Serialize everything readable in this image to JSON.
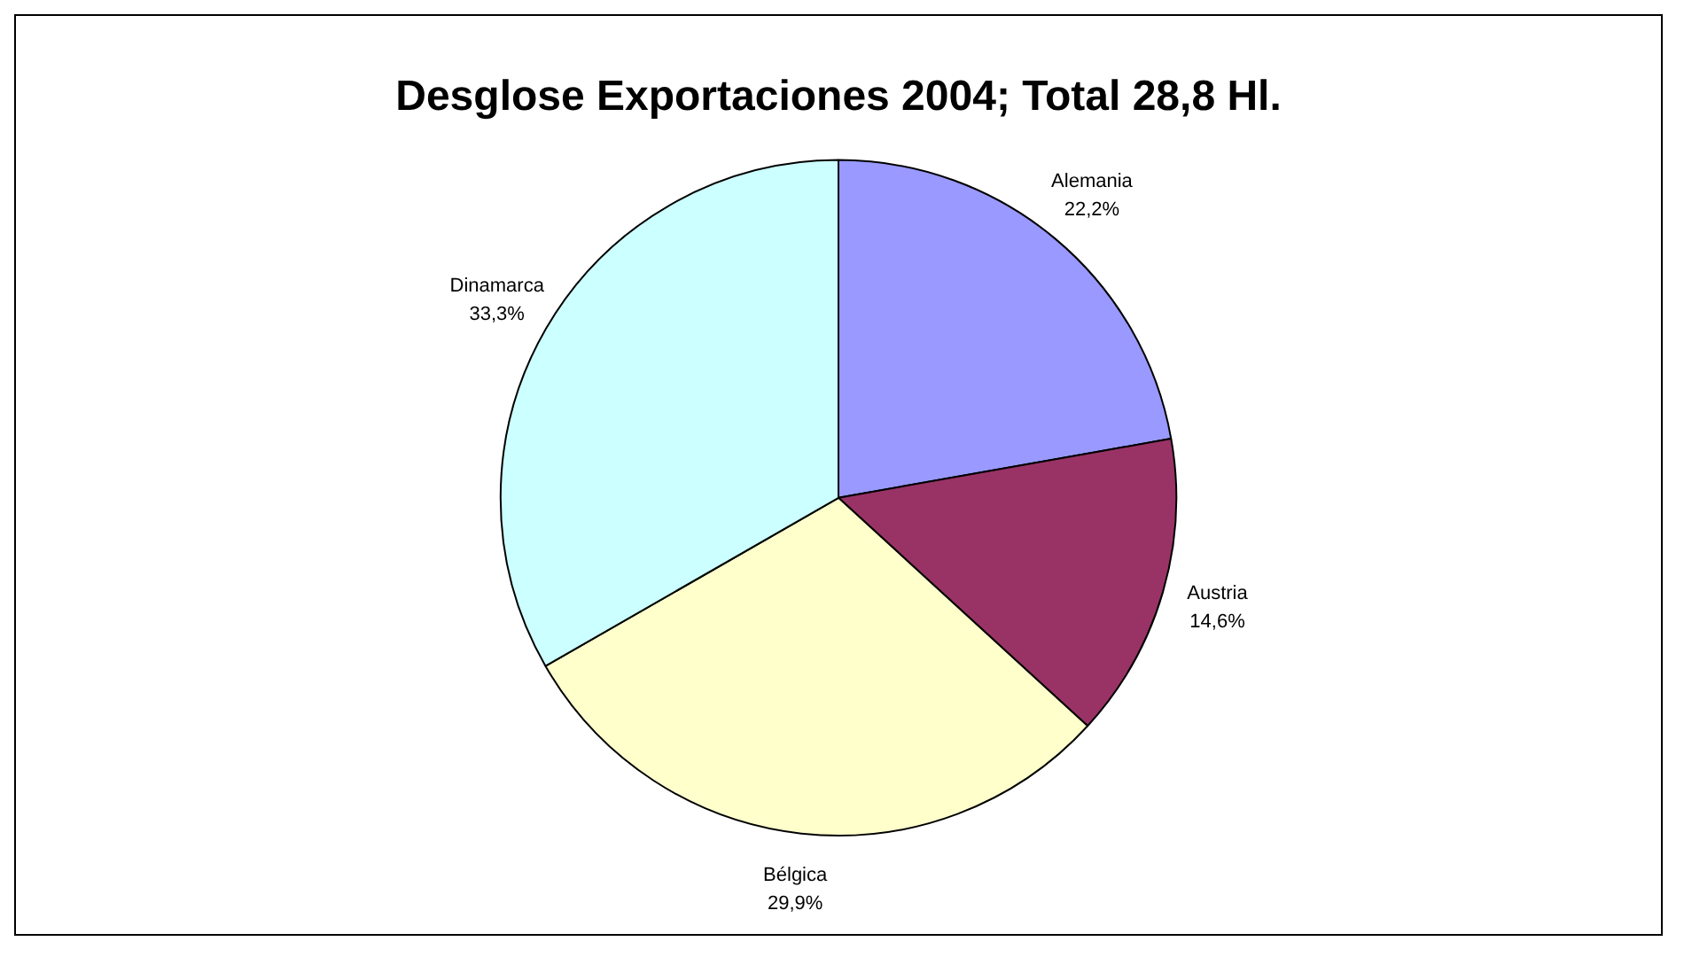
{
  "chart_data": {
    "type": "pie",
    "title": "Desglose Exportaciones 2004; Total 28,8 Hl.",
    "categories": [
      "Alemania",
      "Austria",
      "Bélgica",
      "Dinamarca"
    ],
    "values": [
      22.2,
      14.6,
      29.9,
      33.3
    ],
    "value_labels": [
      "22,2%",
      "14,6%",
      "29,9%",
      "33,3%"
    ],
    "colors": [
      "#9999ff",
      "#993366",
      "#ffffcc",
      "#ccffff"
    ],
    "legend": false
  }
}
